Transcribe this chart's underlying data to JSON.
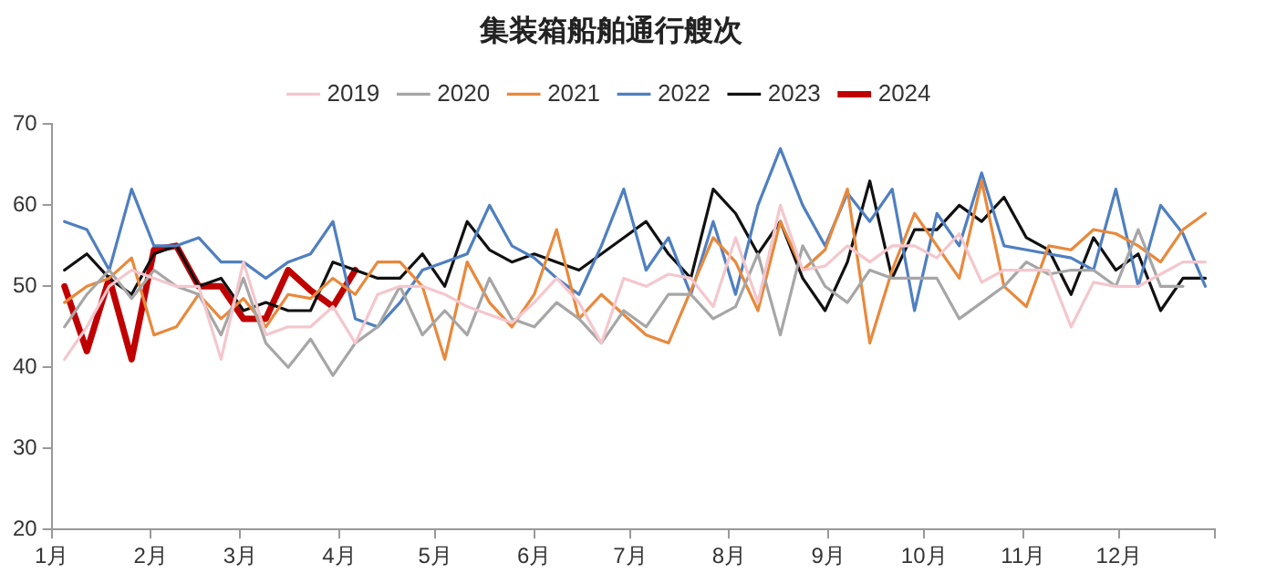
{
  "chart_data": {
    "type": "line",
    "title": "集装箱船舶通行艘次",
    "x": [
      "--01-05",
      "--01-12",
      "--01-19",
      "--01-26",
      "--02-02",
      "--02-09",
      "--02-16",
      "--02-23",
      "--03-02",
      "--03-09",
      "--03-16",
      "--03-23",
      "--03-30",
      "--04-06",
      "--04-13",
      "--04-20",
      "--04-27",
      "--05-04",
      "--05-11",
      "--05-18",
      "--05-25",
      "--06-01",
      "--06-08",
      "--06-15",
      "--06-22",
      "--06-29",
      "--07-06",
      "--07-13",
      "--07-20",
      "--07-27",
      "--08-03",
      "--08-10",
      "--08-17",
      "--08-24",
      "--08-31",
      "--09-07",
      "--09-14",
      "--09-21",
      "--09-28",
      "--10-05",
      "--10-12",
      "--10-19",
      "--10-26",
      "--11-02",
      "--11-09",
      "--11-16",
      "--11-23",
      "--11-30",
      "--12-07",
      "--12-14",
      "--12-21",
      "--12-28"
    ],
    "xlim": [
      "--01-01",
      "--12-31"
    ],
    "xticks": [
      {
        "value": "--01-01",
        "label": "1月"
      },
      {
        "value": "--02-01",
        "label": "2月"
      },
      {
        "value": "--03-01",
        "label": "3月"
      },
      {
        "value": "--04-01",
        "label": "4月"
      },
      {
        "value": "--05-01",
        "label": "5月"
      },
      {
        "value": "--06-01",
        "label": "6月"
      },
      {
        "value": "--07-01",
        "label": "7月"
      },
      {
        "value": "--08-01",
        "label": "8月"
      },
      {
        "value": "--09-01",
        "label": "9月"
      },
      {
        "value": "--10-01",
        "label": "10月"
      },
      {
        "value": "--11-01",
        "label": "11月"
      },
      {
        "value": "--12-01",
        "label": "12月"
      },
      {
        "value": "--12-31",
        "label": null
      }
    ],
    "ylim": [
      20,
      70
    ],
    "yticks": [
      20,
      30,
      40,
      50,
      60,
      70
    ],
    "grid": false,
    "legend": "top",
    "marker": "none",
    "line_style": "solid",
    "series": [
      {
        "name": "2019",
        "color": "#f4c7cd",
        "values": [
          41,
          45,
          50,
          52,
          51,
          50,
          50,
          41,
          53,
          44,
          45,
          45,
          47.5,
          43,
          49,
          50,
          50,
          49,
          47.5,
          46.5,
          45.5,
          48,
          51,
          48,
          43,
          51,
          50,
          51.5,
          51,
          47.5,
          56,
          48,
          60,
          52,
          52.5,
          55,
          53,
          55,
          55,
          53.5,
          56.5,
          50.5,
          52,
          52,
          52,
          45,
          50.5,
          50,
          50,
          51.5,
          53,
          53
        ]
      },
      {
        "name": "2020",
        "color": "#a6a6a6",
        "values": [
          45,
          49,
          52,
          48.5,
          52,
          50,
          49,
          44,
          51,
          43,
          40,
          43.5,
          39,
          43,
          45,
          50,
          44,
          47,
          44,
          51,
          46,
          45,
          48,
          46,
          43,
          47,
          45,
          49,
          49,
          46,
          47.5,
          54,
          44,
          55,
          50,
          48,
          52,
          51,
          51,
          51,
          46,
          48,
          50,
          53,
          51.5,
          52,
          52,
          50,
          57,
          50,
          50,
          null
        ]
      },
      {
        "name": "2021",
        "color": "#e8893c",
        "values": [
          48,
          50,
          51,
          53.5,
          44,
          45,
          49,
          46,
          48.5,
          45,
          49,
          48.5,
          51,
          49,
          53,
          53,
          50,
          41,
          53,
          48,
          45,
          49,
          57,
          46,
          49,
          46.5,
          44,
          43,
          49.5,
          56,
          53,
          47,
          58,
          52,
          54.5,
          62,
          43,
          52,
          59,
          55,
          51,
          63,
          50,
          47.5,
          55,
          54.5,
          57,
          56.5,
          55,
          53,
          57,
          59
        ]
      },
      {
        "name": "2022",
        "color": "#4f7fc0",
        "values": [
          58,
          57,
          52,
          62,
          55,
          55,
          56,
          53,
          53,
          51,
          53,
          54,
          58,
          46,
          45,
          48,
          52,
          53,
          54,
          60,
          55,
          53.5,
          51,
          49,
          55,
          62,
          52,
          56,
          49,
          58,
          49,
          60,
          67,
          60,
          55,
          61.5,
          58,
          62,
          47,
          59,
          55,
          64,
          55,
          54.5,
          54,
          53.5,
          52,
          62,
          50,
          60,
          56.5,
          50
        ]
      },
      {
        "name": "2023",
        "color": "#111111",
        "values": [
          52,
          54,
          51,
          49,
          54,
          55,
          50,
          51,
          47,
          48,
          47,
          47,
          53,
          52,
          51,
          51,
          54,
          50,
          58,
          54.5,
          53,
          54,
          53,
          52,
          54,
          56,
          58,
          54,
          51,
          62,
          59,
          54,
          58,
          51,
          47,
          53,
          63,
          51,
          57,
          57,
          60,
          58,
          61,
          56,
          54.5,
          49,
          56,
          52,
          54,
          47,
          51,
          51
        ]
      },
      {
        "name": "2024",
        "color": "#c00000",
        "values": [
          50,
          42,
          51,
          41,
          54.5,
          55,
          50,
          50,
          46,
          46,
          52,
          49.5,
          47.5,
          52,
          null,
          null,
          null,
          null,
          null,
          null,
          null,
          null,
          null,
          null,
          null,
          null,
          null,
          null,
          null,
          null,
          null,
          null,
          null,
          null,
          null,
          null,
          null,
          null,
          null,
          null,
          null,
          null,
          null,
          null,
          null,
          null,
          null,
          null,
          null,
          null,
          null,
          null
        ]
      }
    ]
  }
}
